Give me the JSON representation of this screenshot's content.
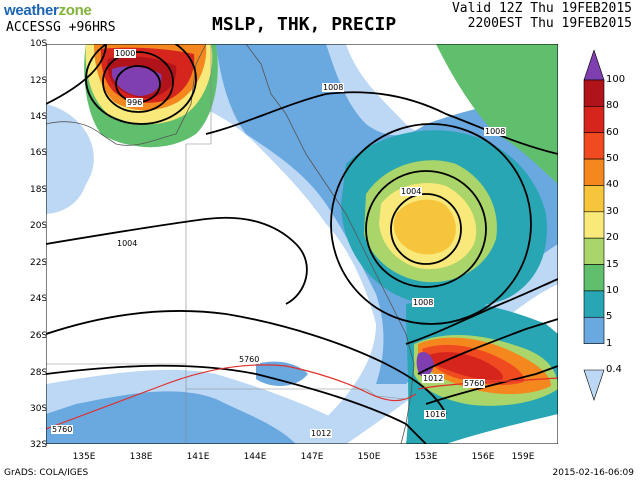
{
  "header": {
    "logo_weather": "weather",
    "logo_zone": "zone",
    "model_run": "ACCESSG +96HRS",
    "title": "MSLP, THK, PRECIP",
    "valid_utc": "Valid 12Z Thu 19FEB2015",
    "valid_local": "2200EST Thu 19FEB2015"
  },
  "map": {
    "lat_labels": [
      "10S",
      "12S",
      "14S",
      "16S",
      "18S",
      "20S",
      "22S",
      "24S",
      "26S",
      "28S",
      "30S",
      "32S"
    ],
    "lon_labels": [
      "135E",
      "138E",
      "141E",
      "144E",
      "147E",
      "150E",
      "153E",
      "156E",
      "159E"
    ],
    "isobar_labels": [
      "1000",
      "996",
      "1008",
      "1008",
      "1004",
      "1004",
      "1008",
      "1012",
      "1016",
      "1012"
    ],
    "thickness_labels": [
      "5760",
      "5760",
      "5760"
    ],
    "colors": {
      "ocean": "#ffffff",
      "isobar": "#000000",
      "thickness": "#e0302c",
      "coast": "#555555"
    }
  },
  "colorbar": {
    "levels": [
      "100",
      "80",
      "60",
      "50",
      "40",
      "30",
      "20",
      "15",
      "10",
      "5",
      "1",
      "0.4"
    ],
    "colors": [
      "#7f3fb0",
      "#b0131a",
      "#d6251d",
      "#f04a21",
      "#f5871f",
      "#f7c53c",
      "#f8e97a",
      "#a9d56a",
      "#5fbf6d",
      "#28a6b4",
      "#6aa8e0",
      "#bcd8f5"
    ]
  },
  "footer": {
    "credit": "GrADS: COLA/IGES",
    "timestamp": "2015-02-16-06:09"
  }
}
